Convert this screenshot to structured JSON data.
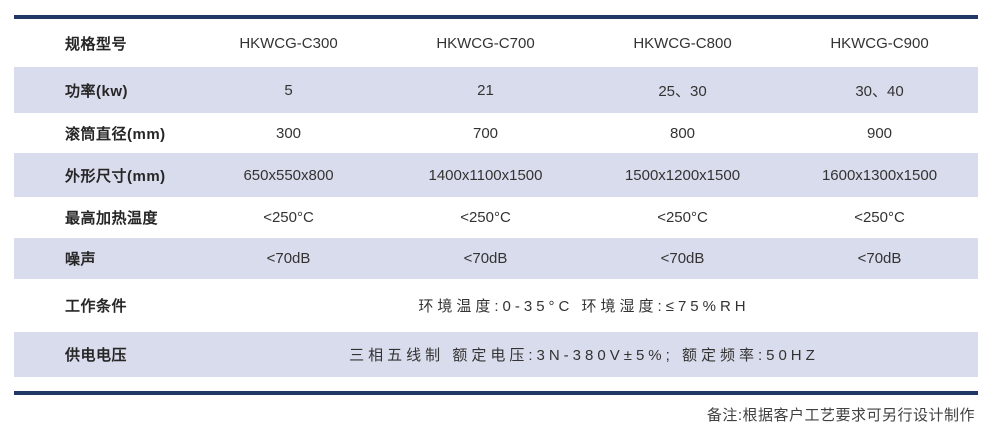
{
  "colors": {
    "accent_rule": "#1f3864",
    "row_band": "#d9dcec",
    "text": "#333333"
  },
  "table": {
    "rows": [
      {
        "label": "规格型号",
        "values": [
          "HKWCG-C300",
          "HKWCG-C700",
          "HKWCG-C800",
          "HKWCG-C900"
        ]
      },
      {
        "label": "功率(kw)",
        "values": [
          "5",
          "21",
          "25、30",
          "30、40"
        ]
      },
      {
        "label": "滚筒直径(mm)",
        "values": [
          "300",
          "700",
          "800",
          "900"
        ]
      },
      {
        "label": "外形尺寸(mm)",
        "values": [
          "650x550x800",
          "1400x1100x1500",
          "1500x1200x1500",
          "1600x1300x1500"
        ]
      },
      {
        "label": "最高加热温度",
        "values": [
          "<250°C",
          "<250°C",
          "<250°C",
          "<250°C"
        ]
      },
      {
        "label": "噪声",
        "values": [
          "<70dB",
          "<70dB",
          "<70dB",
          "<70dB"
        ]
      },
      {
        "label": "工作条件",
        "span_value": "环境温度:0-35°C 环境湿度:≤75%RH"
      },
      {
        "label": "供电电压",
        "span_value": "三相五线制 额定电压:3N-380V±5%; 额定频率:50HZ"
      }
    ],
    "footnote": "备注:根据客户工艺要求可另行设计制作"
  }
}
